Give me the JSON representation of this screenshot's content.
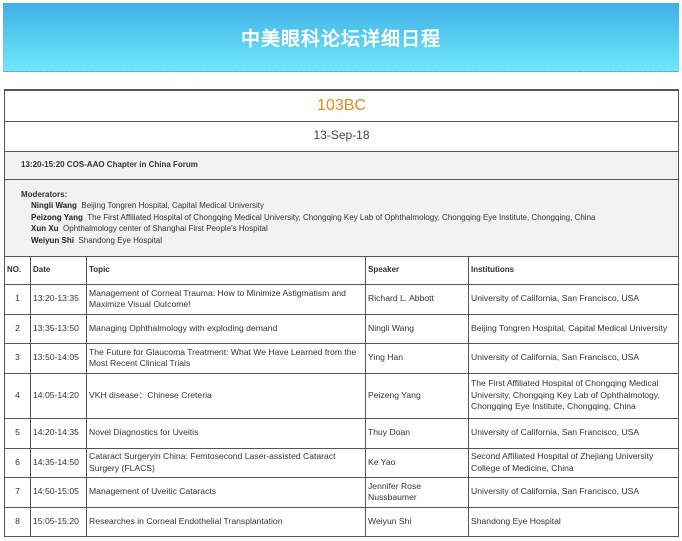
{
  "banner": {
    "title": "中美眼科论坛详细日程"
  },
  "room": "103BC",
  "date": "13-Sep-18",
  "session": "13:20-15:20  COS-AAO Chapter in China Forum",
  "moderators": {
    "label": "Moderators:",
    "items": [
      {
        "name": "Ningli Wang",
        "affiliation": "Beijing Tongren Hospital, Capital Medical University"
      },
      {
        "name": "Peizong Yang",
        "affiliation": "The First Affiliated Hospital of Chongqing Medical University, Chongqing Key Lab of Ophthalmology, Chongqing Eye Institute, Chongqing, China"
      },
      {
        "name": "Xun Xu",
        "affiliation": "Ophthalmology center of Shanghai First People's Hospital"
      },
      {
        "name": "Weiyun Shi",
        "affiliation": "Shandong Eye Hospital"
      }
    ]
  },
  "columns": [
    "NO.",
    "Date",
    "Topic",
    "Speaker",
    "Institutions"
  ],
  "rows": [
    {
      "no": "1",
      "date": "13:20-13:35",
      "topic": "Management of Corneal Trauma: How to Minimize Astigmatism and Maximize Visual Outcome!",
      "speaker": "Richard L. Abbott",
      "inst": "University of California, San Francisco, USA"
    },
    {
      "no": "2",
      "date": "13:35-13:50",
      "topic": "Managing Ophthalmology with exploding demand",
      "speaker": "Ningli Wang",
      "inst": "Beijing Tongren Hospital, Capital Medical University"
    },
    {
      "no": "3",
      "date": "13:50-14:05",
      "topic": "The Future for Glaucoma Treatment: What We Have Learned from the Most Recent Clinical Trials",
      "speaker": "Ying Han",
      "inst": "University of California, San Francisco, USA"
    },
    {
      "no": "4",
      "date": "14:05-14:20",
      "topic": "VKH disease：Chinese Creteria",
      "speaker": "Peizeng Yang",
      "inst": "The First Affiliated Hospital of Chongqing Medical University, Chongqing Key Lab of Ophthalmology, Chongqing Eye Institute, Chongqing, China"
    },
    {
      "no": "5",
      "date": "14:20-14:35",
      "topic": "Novel Diagnostics for Uveitis",
      "speaker": "Thuy Doan",
      "inst": "University of California, San Francisco, USA"
    },
    {
      "no": "6",
      "date": "14:35-14:50",
      "topic": "Cataract Surgeryin China: Femtosecond Laser-assisted Cataract Surgery (FLACS)",
      "speaker": "Ke Yao",
      "inst": "Second Affiliated Hospital of Zhejiang University College of Medicine, China"
    },
    {
      "no": "7",
      "date": "14:50-15:05",
      "topic": "Management of Uveitic Cataracts",
      "speaker": "Jennifer Rose Nussbaumer",
      "inst": "University of California, San Francisco, USA"
    },
    {
      "no": "8",
      "date": "15:05-15:20",
      "topic": "Researches in Corneal Endothelial Transplantation",
      "speaker": "Weiyun Shi",
      "inst": "Shandong Eye Hospital"
    }
  ]
}
